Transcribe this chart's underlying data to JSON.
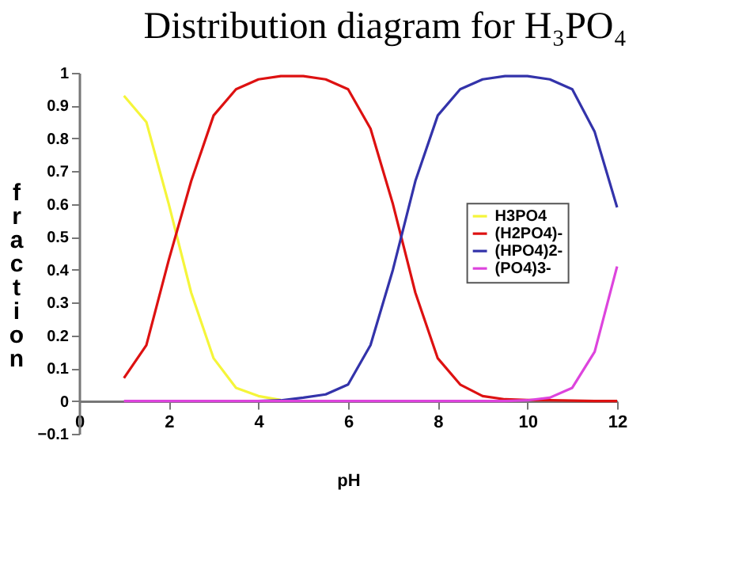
{
  "chart_data": {
    "type": "line",
    "title": "Distribution diagram for H₃PO₄",
    "xlabel": "pH",
    "ylabel": "fraction",
    "x": [
      1,
      1.5,
      2,
      2.5,
      3,
      3.5,
      4,
      4.5,
      5,
      5.5,
      6,
      6.5,
      7,
      7.5,
      8,
      8.5,
      9,
      9.5,
      10,
      10.5,
      11,
      11.5,
      12
    ],
    "series": [
      {
        "name": "H3PO4",
        "color": "#f5f53a",
        "values": [
          0.93,
          0.85,
          0.6,
          0.33,
          0.13,
          0.04,
          0.015,
          0.003,
          null,
          null,
          null,
          null,
          null,
          null,
          null,
          null,
          null,
          null,
          null,
          null,
          null,
          null,
          null
        ]
      },
      {
        "name": "(H2PO4)-",
        "color": "#dd1111",
        "values": [
          0.07,
          0.17,
          0.43,
          0.67,
          0.87,
          0.95,
          0.98,
          0.99,
          0.99,
          0.98,
          0.95,
          0.83,
          0.6,
          0.33,
          0.13,
          0.05,
          0.015,
          0.005,
          0.003,
          0.002,
          0.001,
          0,
          0
        ]
      },
      {
        "name": "(HPO4)2-",
        "color": "#3333aa",
        "values": [
          null,
          null,
          null,
          null,
          null,
          null,
          0,
          0.002,
          0.01,
          0.02,
          0.05,
          0.17,
          0.4,
          0.67,
          0.87,
          0.95,
          0.98,
          0.99,
          0.99,
          0.98,
          0.95,
          0.82,
          0.59
        ]
      },
      {
        "name": "(PO4)3-",
        "color": "#dd44dd",
        "values": [
          0,
          0,
          0,
          0,
          0,
          0,
          0,
          0,
          0,
          0,
          0,
          0,
          0,
          0,
          0,
          0,
          0,
          0,
          0.002,
          0.01,
          0.04,
          0.15,
          0.41
        ]
      }
    ],
    "xlim": [
      0,
      12
    ],
    "xticks": [
      0,
      2,
      4,
      6,
      8,
      10,
      12
    ],
    "ylim": [
      -0.1,
      1
    ],
    "yticks": [
      -0.1,
      {
        "value": 0,
        "label": "0"
      },
      0.1,
      0.2,
      0.3,
      0.4,
      0.5,
      0.6,
      0.7,
      0.8,
      0.9,
      {
        "value": 1,
        "label": "1"
      }
    ],
    "grid": false,
    "legend": "right",
    "marker": "none",
    "line_style": "solid"
  }
}
